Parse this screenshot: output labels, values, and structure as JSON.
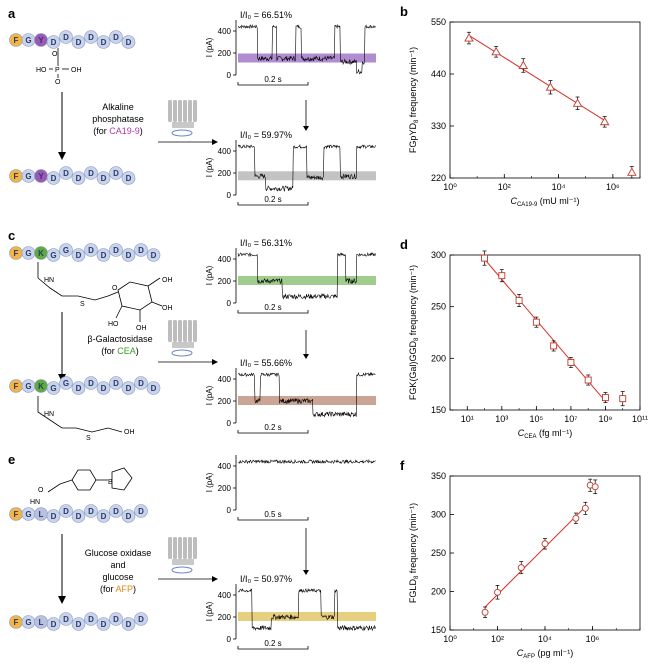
{
  "panels": {
    "a": {
      "label": "a",
      "enzyme": [
        "Alkaline",
        "phosphatase"
      ],
      "target_prefix": "(for ",
      "target": "CA19-9",
      "target_suffix": ")",
      "residues_top": [
        "F",
        "G",
        "Y",
        "D",
        "D",
        "D",
        "D",
        "D",
        "D",
        "D"
      ],
      "residues_bottom": [
        "F",
        "G",
        "Y",
        "D",
        "D",
        "D",
        "D",
        "D",
        "D",
        "D"
      ],
      "trace1_ratio": "I/I₀ = 66.51%",
      "trace2_ratio": "I/I₀ = 59.97%",
      "ylabel": "I (pA)",
      "yticks": [
        "400",
        "200",
        "0"
      ],
      "scale_bar": "0.2 s"
    },
    "c": {
      "label": "c",
      "enzyme": "β-Galactosidase",
      "target_prefix": "(for ",
      "target": "CEA",
      "target_suffix": ")",
      "residues_top": [
        "F",
        "G",
        "K",
        "G",
        "G",
        "D",
        "D",
        "D",
        "D",
        "D",
        "D",
        "D"
      ],
      "residues_bottom": [
        "F",
        "G",
        "K",
        "G",
        "G",
        "D",
        "D",
        "D",
        "D",
        "D",
        "D",
        "D"
      ],
      "trace1_ratio": "I/I₀ = 56.31%",
      "trace2_ratio": "I/I₀ = 55.66%",
      "ylabel": "I (pA)",
      "yticks": [
        "400",
        "200",
        "0"
      ],
      "scale_bar": "0.2 s"
    },
    "e": {
      "label": "e",
      "enzyme": [
        "Glucose oxidase",
        "and",
        "glucose"
      ],
      "target_prefix": "(for ",
      "target": "AFP",
      "target_suffix": ")",
      "residues_top": [
        "F",
        "G",
        "L",
        "D",
        "D",
        "D",
        "D",
        "D",
        "D",
        "D",
        "D"
      ],
      "residues_bottom": [
        "F",
        "G",
        "L",
        "D",
        "D",
        "D",
        "D",
        "D",
        "D",
        "D",
        "D"
      ],
      "trace2_ratio": "I/I₀ = 50.97%",
      "ylabel": "I (pA)",
      "yticks": [
        "400",
        "200",
        "0"
      ],
      "scale_bar1": "0.5 s",
      "scale_bar2": "0.2 s"
    }
  },
  "colors": {
    "purple": "#9b59b6",
    "green": "#5dad3c",
    "orange": "#e69a1f",
    "bead": "#c9d4ec",
    "line": "#d9322a",
    "band_a1": "#a278c9",
    "band_a2": "#b9b9b9",
    "band_c1": "#8fc47a",
    "band_c2": "#c19482",
    "band_e2": "#e3c76a"
  },
  "chart_data": [
    {
      "id": "b",
      "type": "scatter",
      "label": "b",
      "xscale": "log",
      "xlim": [
        1,
        10000000
      ],
      "ylim": [
        220,
        550
      ],
      "xticks": [
        1,
        100,
        10000,
        1000000
      ],
      "xticklabels": [
        "10⁰",
        "10²",
        "10⁴",
        "10⁶"
      ],
      "yticks": [
        220,
        330,
        440,
        550
      ],
      "yticklabels": [
        "220",
        "330",
        "440",
        "550"
      ],
      "ylabel": "FGpYD₈ frequency (min⁻¹)",
      "xlabel": "Cᴄᴀ₁₉₋₉ (mU ml⁻¹)",
      "xlabel_main": "C",
      "xlabel_sub": "CA19-9",
      "xlabel_units": " (mU ml⁻¹)",
      "ylabel_main": "FGpYD",
      "ylabel_sub": "8",
      "ylabel_units": " frequency (min⁻¹)",
      "marker": "triangle",
      "x": [
        5,
        50,
        500,
        5000,
        50000,
        500000,
        5000000
      ],
      "y": [
        516,
        487,
        458,
        412,
        378,
        339,
        232
      ],
      "err": [
        6,
        5,
        8,
        8,
        7,
        5,
        6
      ],
      "fit_x": [
        5,
        500000
      ]
    },
    {
      "id": "d",
      "type": "scatter",
      "label": "d",
      "xscale": "log",
      "xlim": [
        1,
        100000000000
      ],
      "ylim": [
        150,
        300
      ],
      "xticks": [
        10,
        1000,
        100000,
        10000000,
        1000000000,
        100000000000
      ],
      "xticklabels": [
        "10¹",
        "10³",
        "10⁵",
        "10⁷",
        "10⁹",
        "10¹¹"
      ],
      "yticks": [
        150,
        200,
        250,
        300
      ],
      "yticklabels": [
        "150",
        "200",
        "250",
        "300"
      ],
      "ylabel_main": "FGK(Gal)GGD",
      "ylabel_sub": "8",
      "ylabel_units": " frequency (min⁻¹)",
      "xlabel_main": "C",
      "xlabel_sub": "CEA",
      "xlabel_units": " (fg ml⁻¹)",
      "marker": "square",
      "x": [
        100,
        1000,
        10000,
        100000,
        1000000,
        10000000,
        100000000,
        1000000000,
        10000000000
      ],
      "y": [
        297,
        280,
        256,
        235,
        212,
        196,
        179,
        162,
        161
      ],
      "err": [
        4,
        3,
        3,
        2,
        2,
        2,
        2,
        2,
        4
      ],
      "fit_x": [
        100,
        1000000000
      ]
    },
    {
      "id": "f",
      "type": "scatter",
      "label": "f",
      "xscale": "log",
      "xlim": [
        1,
        100000000
      ],
      "ylim": [
        150,
        350
      ],
      "xticks": [
        1,
        100,
        10000,
        1000000
      ],
      "xticklabels": [
        "10⁰",
        "10²",
        "10⁴",
        "10⁶"
      ],
      "yticks": [
        150,
        200,
        250,
        300,
        350
      ],
      "yticklabels": [
        "150",
        "200",
        "250",
        "300",
        "350"
      ],
      "ylabel_main": "FGLD",
      "ylabel_sub": "8",
      "ylabel_units": " frequency (min⁻¹)",
      "xlabel_main": "C",
      "xlabel_sub": "AFP",
      "xlabel_units": " (pg ml⁻¹)",
      "marker": "circle",
      "x": [
        30,
        100,
        1000,
        10000,
        200000,
        500000,
        800000,
        1300000
      ],
      "y": [
        173,
        199,
        231,
        262,
        295,
        308,
        338,
        336
      ],
      "err": [
        3,
        5,
        4,
        3,
        3,
        4,
        4,
        5
      ],
      "fit_x": [
        30,
        500000
      ]
    }
  ]
}
